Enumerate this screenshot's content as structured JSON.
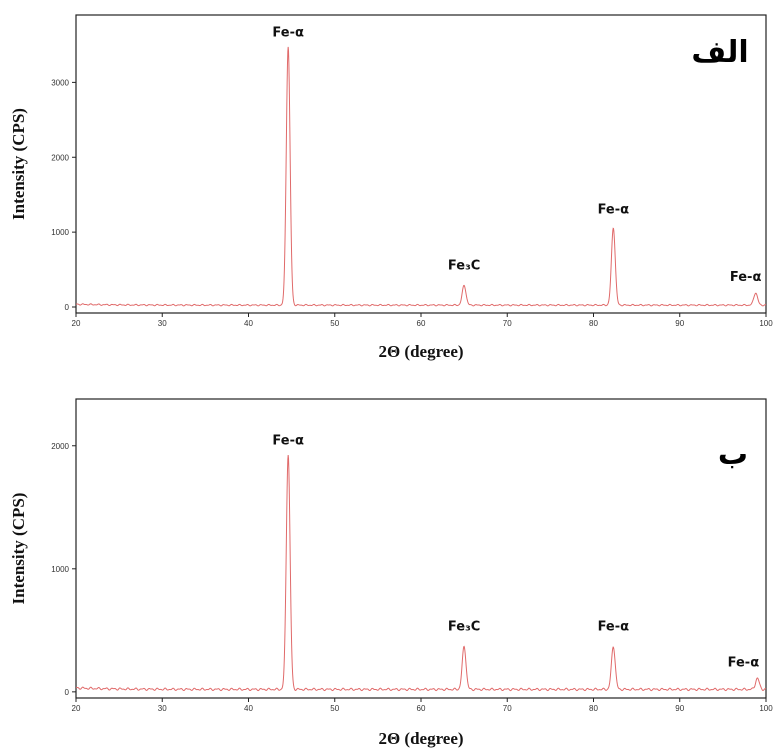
{
  "chart_data": [
    {
      "type": "line",
      "panel_label": "الف",
      "xlabel": "2Θ (degree)",
      "ylabel": "Intensity (CPS)",
      "xlim": [
        20,
        100
      ],
      "ylim": [
        -80,
        3900
      ],
      "xticks": [
        "20",
        "30",
        "40",
        "50",
        "60",
        "70",
        "80",
        "90",
        "100"
      ],
      "yticks": [
        "0",
        "1000",
        "2000",
        "3000"
      ],
      "grid": false,
      "line_color": "#e06a6a",
      "baseline": 25,
      "peaks": [
        {
          "x": 44.6,
          "y": 3480,
          "label": "Fe-α"
        },
        {
          "x": 65.0,
          "y": 290,
          "label": "Fe₃C"
        },
        {
          "x": 82.3,
          "y": 1060,
          "label": "Fe-α"
        },
        {
          "x": 98.8,
          "y": 190,
          "label": "Fe-α"
        }
      ]
    },
    {
      "type": "line",
      "panel_label": "ب",
      "xlabel": "2Θ (degree)",
      "ylabel": "Intensity (CPS)",
      "xlim": [
        20,
        100
      ],
      "ylim": [
        -50,
        2380
      ],
      "xticks": [
        "20",
        "30",
        "40",
        "50",
        "60",
        "70",
        "80",
        "90",
        "100"
      ],
      "yticks": [
        "0",
        "1000",
        "2000"
      ],
      "grid": false,
      "line_color": "#e06a6a",
      "baseline": 20,
      "peaks": [
        {
          "x": 44.6,
          "y": 1930,
          "label": "Fe-α"
        },
        {
          "x": 65.0,
          "y": 370,
          "label": "Fe₃C"
        },
        {
          "x": 82.3,
          "y": 370,
          "label": "Fe-α"
        },
        {
          "x": 99.0,
          "y": 110,
          "label": "Fe-α"
        }
      ]
    }
  ]
}
